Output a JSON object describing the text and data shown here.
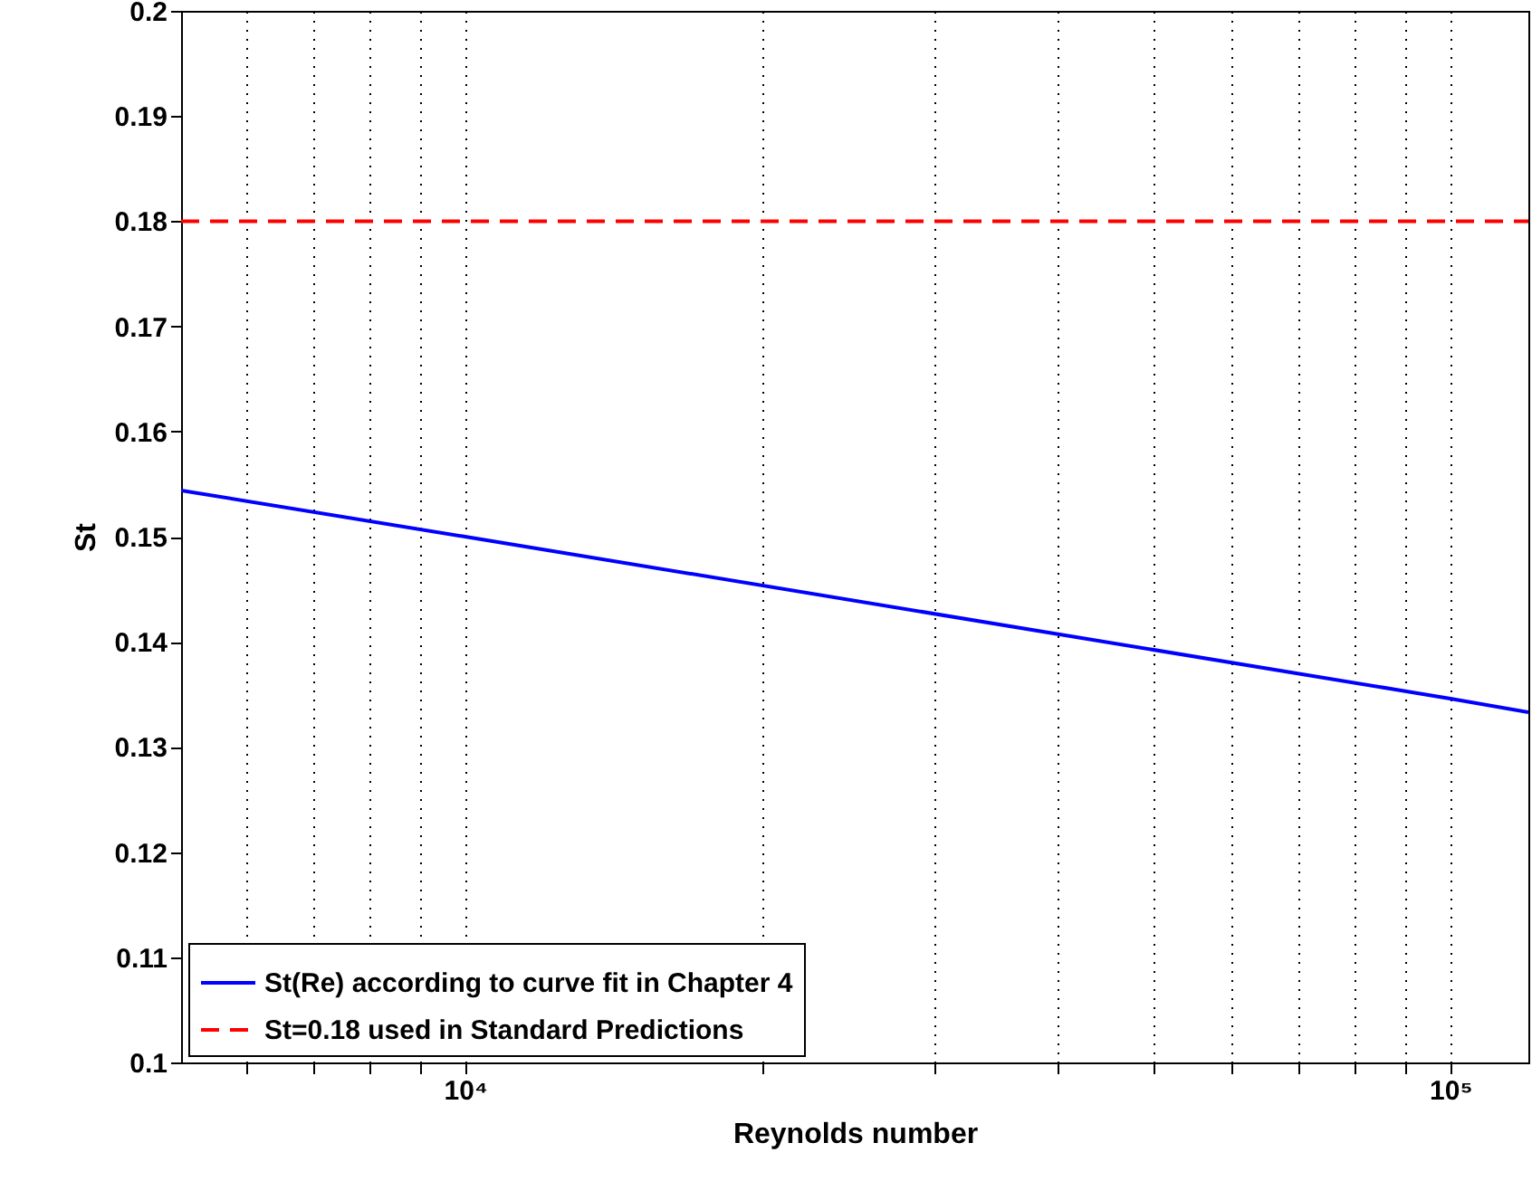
{
  "chart_data": {
    "type": "line",
    "xlabel": "Reynolds number",
    "ylabel": "St",
    "log": "x",
    "grid": "x",
    "legend": "bottom left",
    "xlim": [
      5150,
      120000
    ],
    "ylim": [
      0.1,
      0.2
    ],
    "xticks": [
      {
        "value": 6000,
        "label": null
      },
      {
        "value": 7000,
        "label": null
      },
      {
        "value": 8000,
        "label": null
      },
      {
        "value": 9000,
        "label": null
      },
      {
        "value": 10000,
        "label": "10⁴"
      },
      {
        "value": 20000,
        "label": null
      },
      {
        "value": 30000,
        "label": null
      },
      {
        "value": 40000,
        "label": null
      },
      {
        "value": 50000,
        "label": null
      },
      {
        "value": 60000,
        "label": null
      },
      {
        "value": 70000,
        "label": null
      },
      {
        "value": 80000,
        "label": null
      },
      {
        "value": 90000,
        "label": null
      },
      {
        "value": 100000,
        "label": "10⁵"
      }
    ],
    "yticks": [
      0.1,
      0.11,
      0.12,
      0.13,
      0.14,
      0.15,
      0.16,
      0.17,
      0.18,
      0.19,
      0.2
    ],
    "series": [
      {
        "name": "St(Re) according to curve fit in Chapter 4",
        "color": "#0000ff",
        "line_style": "solid",
        "x": [
          5150,
          10000,
          100000,
          120000
        ],
        "values": [
          0.1544,
          0.15,
          0.1346,
          0.1333
        ]
      },
      {
        "name": "St=0.18 used in Standard Predictions",
        "color": "#ff0000",
        "line_style": "dashed",
        "x": [
          5150,
          120000
        ],
        "values": [
          0.18,
          0.18
        ]
      }
    ]
  }
}
